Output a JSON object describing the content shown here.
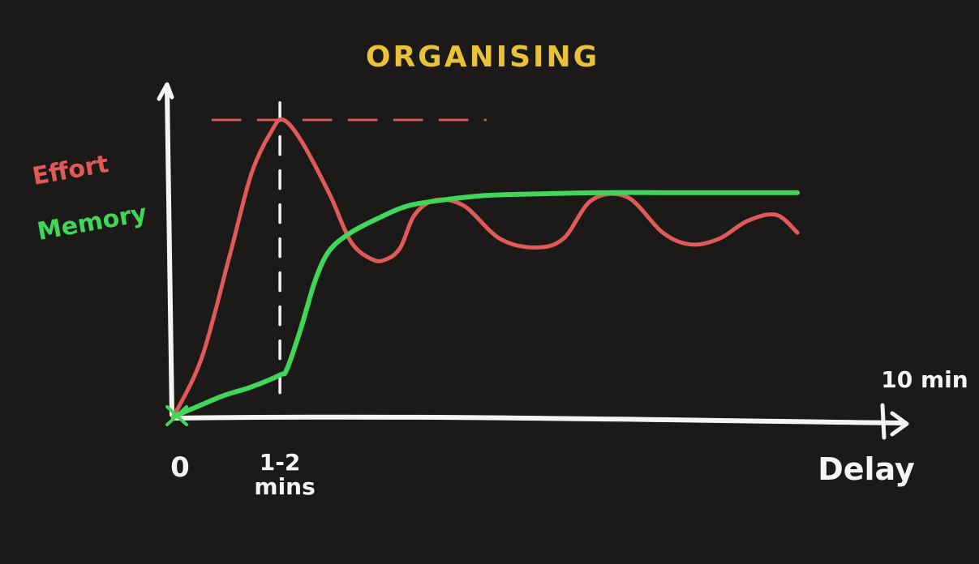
{
  "chart_data": {
    "type": "line",
    "title": "ORGANISING",
    "xlabel": "Delay",
    "ylabel": "",
    "x_end_label": "10 min",
    "x_ticks": [
      {
        "value": 0,
        "label": "0"
      },
      {
        "value": 1.5,
        "label": "1-2 mins"
      }
    ],
    "xlim": [
      0,
      10
    ],
    "ylim": [
      0,
      1
    ],
    "grid": false,
    "legend": "left-middle",
    "series": [
      {
        "name": "Effort",
        "color": "#e05a5a",
        "x": [
          0,
          0.4,
          0.8,
          1.1,
          1.4,
          1.55,
          1.8,
          2.2,
          2.5,
          2.8,
          3.0,
          3.2,
          3.4,
          3.7,
          4.1,
          4.6,
          5.1,
          5.5,
          5.9,
          6.4,
          6.9,
          7.3,
          7.7,
          8.1,
          8.5,
          8.8
        ],
        "values": [
          0,
          0.2,
          0.55,
          0.82,
          0.97,
          1.0,
          0.93,
          0.75,
          0.59,
          0.53,
          0.53,
          0.57,
          0.68,
          0.73,
          0.71,
          0.6,
          0.57,
          0.6,
          0.73,
          0.74,
          0.62,
          0.58,
          0.6,
          0.66,
          0.68,
          0.62
        ]
      },
      {
        "name": "Memory",
        "color": "#3fd65a",
        "x": [
          0,
          0.3,
          0.7,
          1.1,
          1.5,
          1.6,
          1.8,
          2.0,
          2.2,
          2.5,
          2.9,
          3.3,
          3.8,
          4.4,
          5.0,
          6.0,
          7.0,
          8.0,
          8.8
        ],
        "values": [
          0,
          0.03,
          0.07,
          0.1,
          0.14,
          0.16,
          0.3,
          0.46,
          0.56,
          0.62,
          0.67,
          0.71,
          0.73,
          0.745,
          0.75,
          0.755,
          0.755,
          0.755,
          0.755
        ]
      }
    ],
    "annotations": [
      {
        "type": "hline-dashed",
        "series": "Effort",
        "value": 1.0,
        "x_range": [
          0.55,
          4.4
        ]
      },
      {
        "type": "vline-dashed",
        "x": 1.5,
        "y_range": [
          0,
          1.02
        ]
      }
    ],
    "colors": {
      "background": "#1b1a19",
      "axis": "#f4f4f4",
      "title": "#e9c23a",
      "effort": "#e05a5a",
      "memory": "#3fd65a"
    }
  }
}
